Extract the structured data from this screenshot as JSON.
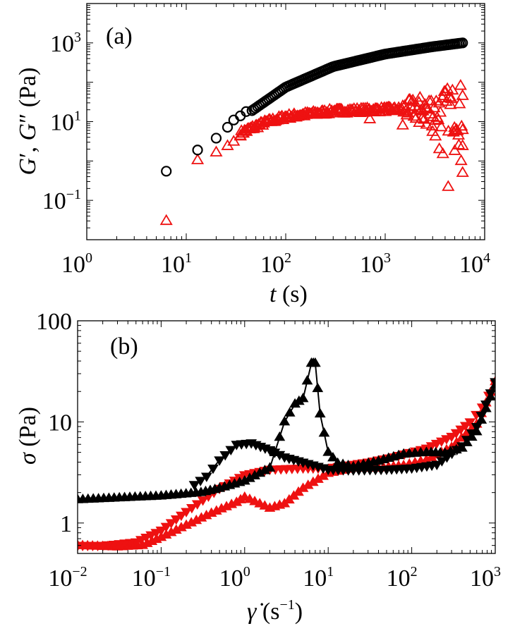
{
  "chart_data": [
    {
      "id": "a",
      "type": "scatter",
      "panel_label": "(a)",
      "xlabel": "t (s)",
      "ylabel": "G′, G″ (Pa)",
      "xscale": "log",
      "yscale": "log",
      "xlim": [
        1,
        10000
      ],
      "ylim": [
        0.01,
        10000
      ],
      "xticks": [
        {
          "value": 1,
          "base": "10",
          "exp": "0"
        },
        {
          "value": 10,
          "base": "10",
          "exp": "1"
        },
        {
          "value": 100,
          "base": "10",
          "exp": "2"
        },
        {
          "value": 1000,
          "base": "10",
          "exp": "3"
        },
        {
          "value": 10000,
          "base": "10",
          "exp": "4"
        }
      ],
      "yticks": [
        {
          "value": 0.1,
          "base": "10",
          "exp": "−1"
        },
        {
          "value": 10,
          "base": "10",
          "exp": "1"
        },
        {
          "value": 1000,
          "base": "10",
          "exp": "3"
        }
      ],
      "series": [
        {
          "name": "G′",
          "marker": "circle",
          "color": "#000000",
          "curve": {
            "type": "loglog_growth",
            "x_start": 6.3,
            "x_end": 6000,
            "n": 160,
            "y_at": [
              [
                6.3,
                0.55
              ],
              [
                13,
                1.9
              ],
              [
                20,
                3.8
              ],
              [
                40,
                15
              ],
              [
                100,
                75
              ],
              [
                300,
                250
              ],
              [
                1000,
                520
              ],
              [
                3000,
                800
              ],
              [
                6000,
                1000
              ]
            ]
          },
          "points": [
            [
              6.3,
              0.55
            ],
            [
              13,
              1.9
            ],
            [
              20,
              3.8
            ],
            [
              26,
              7.2
            ],
            [
              30,
              11
            ],
            [
              35,
              14
            ],
            [
              40,
              18
            ]
          ]
        },
        {
          "name": "G″",
          "marker": "triangle-up",
          "color": "#ee1111",
          "curve": {
            "type": "noisy_plateau",
            "x_start": 35,
            "x_end": 6000,
            "n": 220,
            "y_at": [
              [
                35,
                5
              ],
              [
                60,
                9
              ],
              [
                100,
                13
              ],
              [
                300,
                18
              ],
              [
                1000,
                20
              ],
              [
                3000,
                20
              ],
              [
                6000,
                20
              ]
            ],
            "spread_start": 1500
          },
          "points": [
            [
              6.3,
              0.03
            ],
            [
              13,
              1.05
            ],
            [
              20,
              1.65
            ],
            [
              26,
              2.4
            ],
            [
              30,
              3.1
            ],
            [
              35,
              4.2
            ],
            [
              40,
              5.5
            ],
            [
              45,
              6.5
            ],
            [
              700,
              11.5
            ],
            [
              1500,
              8.0
            ],
            [
              2200,
              9.3
            ],
            [
              2600,
              8.4
            ],
            [
              3000,
              5.5
            ],
            [
              3200,
              4.2
            ],
            [
              3500,
              2.0
            ],
            [
              3800,
              1.5
            ],
            [
              4300,
              0.22
            ],
            [
              5000,
              1.8
            ],
            [
              5500,
              2.5
            ],
            [
              5800,
              1.0
            ],
            [
              6000,
              0.5
            ],
            [
              6000,
              2.4
            ],
            [
              6000,
              45
            ]
          ]
        }
      ]
    },
    {
      "id": "b",
      "type": "line",
      "panel_label": "(b)",
      "xlabel": "γ̇ (s−1)",
      "ylabel": "σ (Pa)",
      "xscale": "log",
      "yscale": "log",
      "xlim": [
        0.01,
        1000
      ],
      "ylim": [
        0.5,
        100
      ],
      "xticks": [
        {
          "value": 0.01,
          "base": "10",
          "exp": "−2"
        },
        {
          "value": 0.1,
          "base": "10",
          "exp": "−1"
        },
        {
          "value": 1,
          "base": "10",
          "exp": "0"
        },
        {
          "value": 10,
          "base": "10",
          "exp": "1"
        },
        {
          "value": 100,
          "base": "10",
          "exp": "2"
        },
        {
          "value": 1000,
          "base": "10",
          "exp": "3"
        }
      ],
      "yticks": [
        {
          "value": 1,
          "label": "1"
        },
        {
          "value": 10,
          "label": "10"
        },
        {
          "value": 100,
          "label": "100"
        }
      ],
      "series": [
        {
          "name": "black up-sweep",
          "marker": "triangle-up",
          "color": "#000000",
          "line": true,
          "anchors": [
            [
              0.01,
              1.7
            ],
            [
              0.1,
              1.85
            ],
            [
              0.3,
              2.0
            ],
            [
              0.5,
              2.2
            ],
            [
              1,
              2.6
            ],
            [
              2,
              3.5
            ],
            [
              3,
              10
            ],
            [
              4,
              15
            ],
            [
              5,
              17
            ],
            [
              6.3,
              38
            ],
            [
              7,
              38
            ],
            [
              8,
              12
            ],
            [
              10,
              5
            ],
            [
              13,
              3.9
            ],
            [
              20,
              3.6
            ],
            [
              40,
              4.1
            ],
            [
              80,
              4.8
            ],
            [
              150,
              5.0
            ],
            [
              250,
              4.9
            ],
            [
              400,
              5.5
            ],
            [
              600,
              8
            ],
            [
              1000,
              23
            ]
          ]
        },
        {
          "name": "black down-sweep",
          "marker": "triangle-down",
          "color": "#000000",
          "line": true,
          "anchors": [
            [
              1000,
              25
            ],
            [
              600,
              9
            ],
            [
              400,
              5.8
            ],
            [
              200,
              3.8
            ],
            [
              100,
              3.5
            ],
            [
              50,
              3.4
            ],
            [
              20,
              3.35
            ],
            [
              10,
              3.4
            ],
            [
              5,
              4.0
            ],
            [
              3,
              4.5
            ],
            [
              2,
              5.3
            ],
            [
              1.2,
              6.2
            ],
            [
              0.8,
              6.0
            ],
            [
              0.5,
              4.2
            ],
            [
              0.35,
              2.9
            ],
            [
              0.25,
              2.4
            ]
          ]
        },
        {
          "name": "red up-sweep",
          "marker": "triangle-up",
          "color": "#ee1111",
          "line": false,
          "anchors": [
            [
              0.01,
              0.6
            ],
            [
              0.03,
              0.58
            ],
            [
              0.06,
              0.6
            ],
            [
              0.1,
              0.72
            ],
            [
              0.2,
              0.95
            ],
            [
              0.4,
              1.25
            ],
            [
              0.8,
              1.6
            ],
            [
              1,
              1.8
            ],
            [
              2,
              1.4
            ],
            [
              3,
              1.55
            ],
            [
              5,
              2.2
            ],
            [
              10,
              3.1
            ],
            [
              20,
              3.5
            ],
            [
              40,
              3.5
            ],
            [
              80,
              3.7
            ],
            [
              150,
              4.2
            ],
            [
              300,
              5.6
            ],
            [
              600,
              9.5
            ],
            [
              1000,
              25
            ]
          ]
        },
        {
          "name": "red down-sweep",
          "marker": "triangle-down",
          "color": "#ee1111",
          "line": false,
          "anchors": [
            [
              1000,
              24
            ],
            [
              700,
              14
            ],
            [
              500,
              10
            ],
            [
              300,
              7.2
            ],
            [
              150,
              5.5
            ],
            [
              60,
              4.5
            ],
            [
              30,
              4.0
            ],
            [
              10,
              3.5
            ],
            [
              5,
              3.5
            ],
            [
              2,
              3.4
            ],
            [
              1,
              3.0
            ],
            [
              0.5,
              2.2
            ],
            [
              0.2,
              1.3
            ],
            [
              0.1,
              0.85
            ],
            [
              0.05,
              0.65
            ],
            [
              0.02,
              0.6
            ],
            [
              0.01,
              0.6
            ]
          ]
        }
      ]
    }
  ]
}
